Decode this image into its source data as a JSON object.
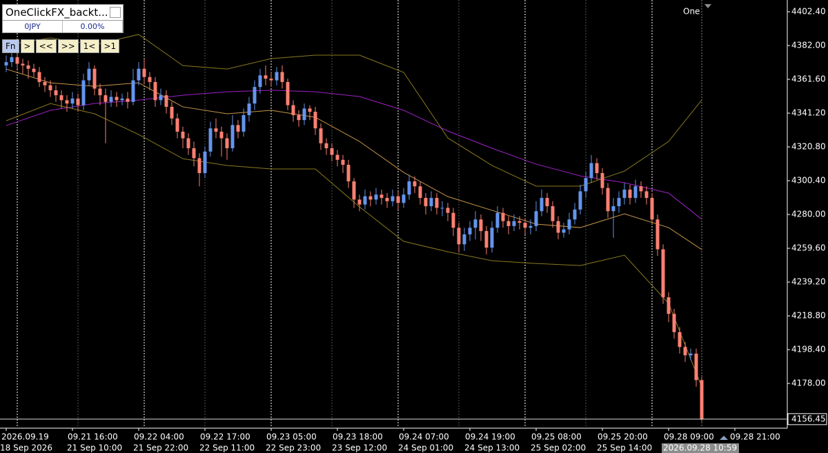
{
  "panel": {
    "title": "OneClickFX_backt...",
    "symbol": "0JPY",
    "percent": "0.00%",
    "buttons": [
      "Fn",
      ">",
      "<<",
      ">>",
      "1<",
      ">1"
    ]
  },
  "chart_data": {
    "type": "candlestick",
    "annotation": "One",
    "up_color": "#6495ed",
    "down_color": "#fa8072",
    "ylim": [
      4151.4,
      4409.5
    ],
    "yticks": [
      {
        "value": 4402.4,
        "label": "4402.40"
      },
      {
        "value": 4382,
        "label": "4382.00"
      },
      {
        "value": 4361.6,
        "label": "4361.60"
      },
      {
        "value": 4341.2,
        "label": "4341.20"
      },
      {
        "value": 4320.8,
        "label": "4320.80"
      },
      {
        "value": 4300.4,
        "label": "4300.40"
      },
      {
        "value": 4280,
        "label": "4280.00"
      },
      {
        "value": 4259.6,
        "label": "4259.60"
      },
      {
        "value": 4239.2,
        "label": "4239.20"
      },
      {
        "value": 4218.8,
        "label": "4218.80"
      },
      {
        "value": 4198.4,
        "label": "4198.40"
      },
      {
        "value": 4178,
        "label": "4178.00"
      }
    ],
    "time_labels_top": [
      "2026.09.19",
      "09.21 16:00",
      "09.22 04:00",
      "09.22 17:00",
      "09.23 05:00",
      "09.23 18:00",
      "09.24 07:00",
      "09.24 19:00",
      "09.25 08:00",
      "09.25 20:00",
      "09.28 09:00",
      "09.28 21:00"
    ],
    "time_labels_bottom": [
      "18 Sep 2026",
      "21 Sep 10:00",
      "21 Sep 22:00",
      "22 Sep 11:00",
      "22 Sep 23:00",
      "23 Sep 12:00",
      "24 Sep 01:00",
      "24 Sep 13:00",
      "25 Sep 02:00",
      "25 Sep 14:00",
      "2026.09.28 10:59"
    ],
    "open": [
      4370,
      4372,
      4375,
      4371,
      4370,
      4368,
      4366,
      4360,
      4358,
      4355,
      4352,
      4349,
      4347,
      4350,
      4346,
      4361,
      4368,
      4356,
      4352,
      4348,
      4351,
      4349,
      4350,
      4348,
      4361,
      4368,
      4363,
      4360,
      4349,
      4352,
      4345,
      4338,
      4330,
      4326,
      4320,
      4314,
      4305,
      4318,
      4332,
      4330,
      4326,
      4320,
      4334,
      4330,
      4340,
      4347,
      4357,
      4364,
      4362,
      4361,
      4366,
      4360,
      4346,
      4340,
      4337,
      4344,
      4342,
      4332,
      4323,
      4320,
      4316,
      4313,
      4310,
      4300,
      4289,
      4286,
      4291,
      4289,
      4292,
      4290,
      4288,
      4291,
      4287,
      4292,
      4300,
      4297,
      4290,
      4285,
      4290,
      4284,
      4284,
      4281,
      4272,
      4262,
      4268,
      4272,
      4277,
      4270,
      4260,
      4272,
      4281,
      4276,
      4273,
      4276,
      4275,
      4272,
      4273,
      4282,
      4290,
      4285,
      4276,
      4269,
      4271,
      4277,
      4283,
      4294,
      4302,
      4311,
      4305,
      4296,
      4282,
      4285,
      4290,
      4295,
      4290,
      4297,
      4294,
      4290,
      4277,
      4259,
      4230,
      4220,
      4209,
      4200,
      4195,
      4196,
      4180
    ],
    "high": [
      4376,
      4380,
      4377,
      4374,
      4373,
      4371,
      4369,
      4363,
      4361,
      4358,
      4355,
      4352,
      4354,
      4353,
      4365,
      4372,
      4370,
      4359,
      4356,
      4355,
      4354,
      4353,
      4354,
      4368,
      4372,
      4374,
      4366,
      4363,
      4356,
      4355,
      4348,
      4341,
      4333,
      4329,
      4324,
      4317,
      4321,
      4336,
      4338,
      4333,
      4329,
      4340,
      4337,
      4344,
      4351,
      4361,
      4368,
      4370,
      4366,
      4369,
      4370,
      4362,
      4349,
      4343,
      4347,
      4346,
      4345,
      4335,
      4326,
      4323,
      4319,
      4316,
      4313,
      4302,
      4292,
      4295,
      4294,
      4296,
      4295,
      4293,
      4295,
      4294,
      4296,
      4304,
      4303,
      4300,
      4293,
      4294,
      4293,
      4288,
      4287,
      4284,
      4275,
      4272,
      4276,
      4282,
      4280,
      4273,
      4276,
      4285,
      4284,
      4279,
      4280,
      4279,
      4278,
      4277,
      4288,
      4295,
      4293,
      4288,
      4279,
      4275,
      4281,
      4287,
      4298,
      4306,
      4316,
      4314,
      4308,
      4299,
      4290,
      4294,
      4299,
      4298,
      4301,
      4300,
      4297,
      4293,
      4280,
      4262,
      4233,
      4223,
      4212,
      4203,
      4199,
      4199,
      4182
    ],
    "low": [
      4366,
      4369,
      4368,
      4365,
      4362,
      4363,
      4357,
      4354,
      4351,
      4348,
      4344,
      4342,
      4344,
      4342,
      4343,
      4358,
      4352,
      4346,
      4323,
      4345,
      4345,
      4346,
      4344,
      4346,
      4358,
      4359,
      4355,
      4345,
      4346,
      4341,
      4334,
      4326,
      4320,
      4316,
      4309,
      4297,
      4302,
      4315,
      4326,
      4315,
      4313,
      4318,
      4326,
      4327,
      4336,
      4343,
      4353,
      4358,
      4357,
      4358,
      4356,
      4343,
      4336,
      4333,
      4334,
      4337,
      4328,
      4319,
      4316,
      4312,
      4309,
      4305,
      4296,
      4284,
      4282,
      4283,
      4285,
      4286,
      4286,
      4284,
      4285,
      4283,
      4284,
      4289,
      4293,
      4286,
      4280,
      4282,
      4280,
      4279,
      4276,
      4267,
      4257,
      4258,
      4264,
      4265,
      4264,
      4256,
      4257,
      4269,
      4272,
      4268,
      4270,
      4271,
      4268,
      4268,
      4270,
      4279,
      4281,
      4272,
      4265,
      4266,
      4268,
      4274,
      4280,
      4290,
      4299,
      4301,
      4292,
      4278,
      4266,
      4281,
      4286,
      4286,
      4287,
      4290,
      4286,
      4274,
      4255,
      4226,
      4215,
      4205,
      4196,
      4191,
      4192,
      4176,
      4155
    ],
    "close": [
      4372,
      4375,
      4371,
      4370,
      4368,
      4366,
      4360,
      4358,
      4355,
      4352,
      4349,
      4347,
      4350,
      4346,
      4361,
      4368,
      4356,
      4352,
      4348,
      4351,
      4349,
      4350,
      4348,
      4361,
      4368,
      4363,
      4360,
      4349,
      4352,
      4345,
      4338,
      4330,
      4326,
      4320,
      4314,
      4305,
      4318,
      4332,
      4330,
      4326,
      4320,
      4334,
      4330,
      4340,
      4347,
      4357,
      4364,
      4362,
      4361,
      4366,
      4360,
      4346,
      4340,
      4337,
      4344,
      4342,
      4332,
      4323,
      4320,
      4316,
      4313,
      4310,
      4300,
      4289,
      4286,
      4291,
      4289,
      4292,
      4290,
      4288,
      4291,
      4287,
      4292,
      4300,
      4297,
      4290,
      4285,
      4290,
      4284,
      4284,
      4281,
      4272,
      4262,
      4268,
      4272,
      4277,
      4270,
      4260,
      4272,
      4281,
      4276,
      4273,
      4276,
      4275,
      4272,
      4273,
      4282,
      4290,
      4285,
      4276,
      4269,
      4271,
      4277,
      4283,
      4294,
      4302,
      4311,
      4305,
      4296,
      4282,
      4285,
      4290,
      4295,
      4290,
      4297,
      4294,
      4290,
      4277,
      4259,
      4230,
      4220,
      4209,
      4200,
      4195,
      4196,
      4180,
      4156.45
    ],
    "lines": [
      {
        "color": "#a020c8",
        "x": [
          0,
          8,
          16,
          24,
          32,
          40,
          48,
          56,
          64,
          72,
          80,
          88,
          96,
          104,
          112,
          120,
          126
        ],
        "values": [
          4333.7,
          4342.9,
          4347.0,
          4349.1,
          4352.0,
          4354.1,
          4355.0,
          4354.1,
          4351.2,
          4342.9,
          4330.4,
          4320.0,
          4310.4,
          4303.3,
          4299.2,
          4292.9,
          4277.1
        ]
      },
      {
        "color": "#c8964a",
        "x": [
          0,
          8,
          16,
          24,
          32,
          40,
          48,
          56,
          64,
          72,
          80,
          88,
          96,
          104,
          112,
          120,
          126
        ],
        "values": [
          4367.8,
          4359.5,
          4357.4,
          4359.5,
          4345.0,
          4340.8,
          4342.9,
          4338.7,
          4324.1,
          4305.4,
          4290.8,
          4282.5,
          4274.2,
          4272.1,
          4280.4,
          4272.1,
          4258.8
        ]
      },
      {
        "color": "#8a7a1e",
        "x": [
          0,
          8,
          16,
          24,
          32,
          40,
          48,
          56,
          64,
          72,
          80,
          88,
          96,
          104,
          112,
          120,
          126
        ],
        "values": [
          4382.4,
          4386.6,
          4382.4,
          4388.7,
          4369.9,
          4367.8,
          4374.1,
          4376.2,
          4376.2,
          4365.8,
          4326.2,
          4309.6,
          4297.1,
          4297.1,
          4306.2,
          4324.1,
          4349.1
        ]
      },
      {
        "color": "#8a7a1e",
        "x": [
          0,
          8,
          16,
          24,
          32,
          40,
          48,
          56,
          64,
          72,
          80,
          88,
          96,
          104,
          112,
          120,
          126
        ],
        "values": [
          4336.6,
          4347.0,
          4340.8,
          4328.3,
          4313.7,
          4309.6,
          4307.5,
          4307.5,
          4284.6,
          4263.8,
          4257.5,
          4252.1,
          4250.4,
          4249.2,
          4255.4,
          4226.3,
          4176.0
        ]
      }
    ]
  }
}
